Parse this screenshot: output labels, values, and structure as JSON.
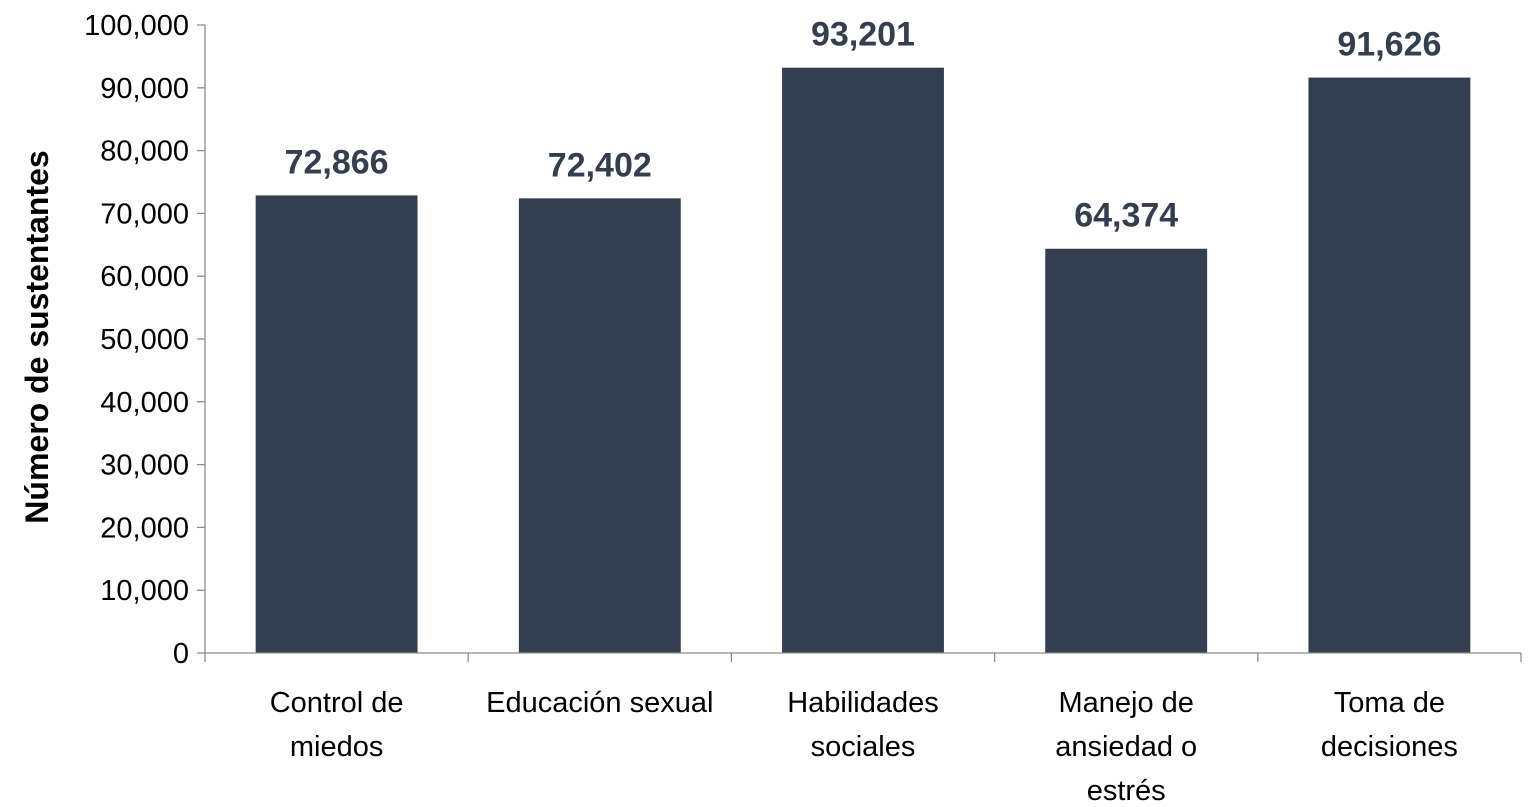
{
  "chart_data": {
    "type": "bar",
    "categories": [
      [
        "Control de",
        "miedos"
      ],
      [
        "Educación sexual"
      ],
      [
        "Habilidades",
        "sociales"
      ],
      [
        "Manejo de",
        "ansiedad o",
        "estrés"
      ],
      [
        "Toma de",
        "decisiones"
      ]
    ],
    "values": [
      72866,
      72402,
      93201,
      64374,
      91626
    ],
    "value_labels": [
      "72,866",
      "72,402",
      "93,201",
      "64,374",
      "91,626"
    ],
    "ylabel": "Número de sustentantes",
    "xlabel": "",
    "ylim": [
      0,
      100000
    ],
    "y_ticks": [
      "0",
      "10,000",
      "20,000",
      "30,000",
      "40,000",
      "50,000",
      "60,000",
      "70,000",
      "80,000",
      "90,000",
      "100,000"
    ],
    "grid": false,
    "legend": "none",
    "bar_color": "#333f50",
    "axis_color": "#8c8c8c"
  }
}
